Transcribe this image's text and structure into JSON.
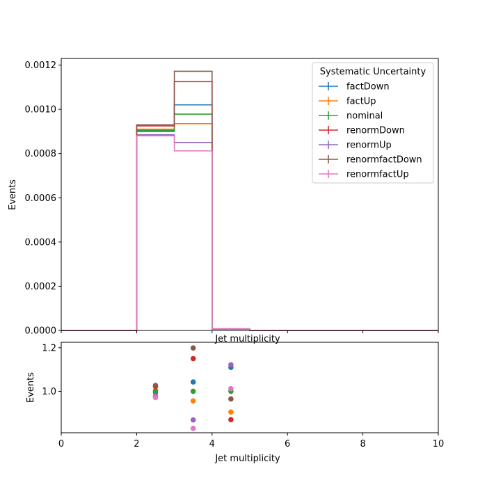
{
  "chart_data": [
    {
      "type": "line",
      "drawstyle": "steps",
      "xlabel": "Jet multiplicity",
      "ylabel": "Events",
      "xlim": [
        0,
        10
      ],
      "ylim": [
        0,
        0.00123
      ],
      "yticks": [
        "0.0000",
        "0.0002",
        "0.0004",
        "0.0006",
        "0.0008",
        "0.0010",
        "0.0012"
      ],
      "ytick_values": [
        0,
        0.0002,
        0.0004,
        0.0006,
        0.0008,
        0.001,
        0.0012
      ],
      "xticks": [
        0,
        2,
        4,
        6,
        8,
        10
      ],
      "grid": false,
      "legend": {
        "title": "Systematic Uncertainty",
        "placement": "top-right"
      },
      "bin_edges": [
        0,
        1,
        2,
        3,
        4,
        5,
        6,
        7,
        8,
        9,
        10
      ],
      "series": [
        {
          "name": "factDown",
          "color": "#1f77b4",
          "values": [
            0,
            0,
            0.0009,
            0.00102,
            7e-06,
            0,
            0,
            0,
            0,
            0
          ]
        },
        {
          "name": "factUp",
          "color": "#ff7f0e",
          "values": [
            0,
            0,
            0.00091,
            0.000935,
            6e-06,
            0,
            0,
            0,
            0,
            0
          ]
        },
        {
          "name": "nominal",
          "color": "#2ca02c",
          "values": [
            0,
            0,
            0.000905,
            0.000978,
            7e-06,
            0,
            0,
            0,
            0,
            0
          ]
        },
        {
          "name": "renormDown",
          "color": "#d62728",
          "values": [
            0,
            0,
            0.000925,
            0.001125,
            6e-06,
            0,
            0,
            0,
            0,
            0
          ]
        },
        {
          "name": "renormUp",
          "color": "#9467bd",
          "values": [
            0,
            0,
            0.000885,
            0.00085,
            8e-06,
            0,
            0,
            0,
            0,
            0
          ]
        },
        {
          "name": "renormfactDown",
          "color": "#8c564b",
          "values": [
            0,
            0,
            0.00093,
            0.001172,
            7e-06,
            0,
            0,
            0,
            0,
            0
          ]
        },
        {
          "name": "renormfactUp",
          "color": "#e377c2",
          "values": [
            0,
            0,
            0.00088,
            0.000812,
            7e-06,
            0,
            0,
            0,
            0,
            0
          ]
        }
      ]
    },
    {
      "type": "scatter",
      "xlabel": "Jet multiplicity",
      "ylabel": "Events",
      "top_xlabel": "Jet multiplicity",
      "xlim": [
        0,
        10
      ],
      "ylim": [
        0.81,
        1.225
      ],
      "yticks": [
        "1.0",
        "1.2"
      ],
      "ytick_values": [
        1.0,
        1.2
      ],
      "xticks": [
        0,
        2,
        4,
        6,
        8,
        10
      ],
      "xtick_labels": [
        "0",
        "2",
        "4",
        "6",
        "8",
        "10"
      ],
      "x": [
        2.5,
        3.5,
        4.5
      ],
      "series": [
        {
          "name": "factDown",
          "color": "#1f77b4",
          "values": [
            0.995,
            1.043,
            1.11
          ]
        },
        {
          "name": "factUp",
          "color": "#ff7f0e",
          "values": [
            1.005,
            0.956,
            0.905
          ]
        },
        {
          "name": "nominal",
          "color": "#2ca02c",
          "values": [
            1.0,
            1.0,
            1.0
          ]
        },
        {
          "name": "renormDown",
          "color": "#d62728",
          "values": [
            1.022,
            1.15,
            0.87
          ]
        },
        {
          "name": "renormUp",
          "color": "#9467bd",
          "values": [
            0.978,
            0.869,
            1.122
          ]
        },
        {
          "name": "renormfactDown",
          "color": "#8c564b",
          "values": [
            1.027,
            1.199,
            0.965
          ]
        },
        {
          "name": "renormfactUp",
          "color": "#e377c2",
          "values": [
            0.972,
            0.83,
            1.012
          ]
        }
      ]
    }
  ]
}
